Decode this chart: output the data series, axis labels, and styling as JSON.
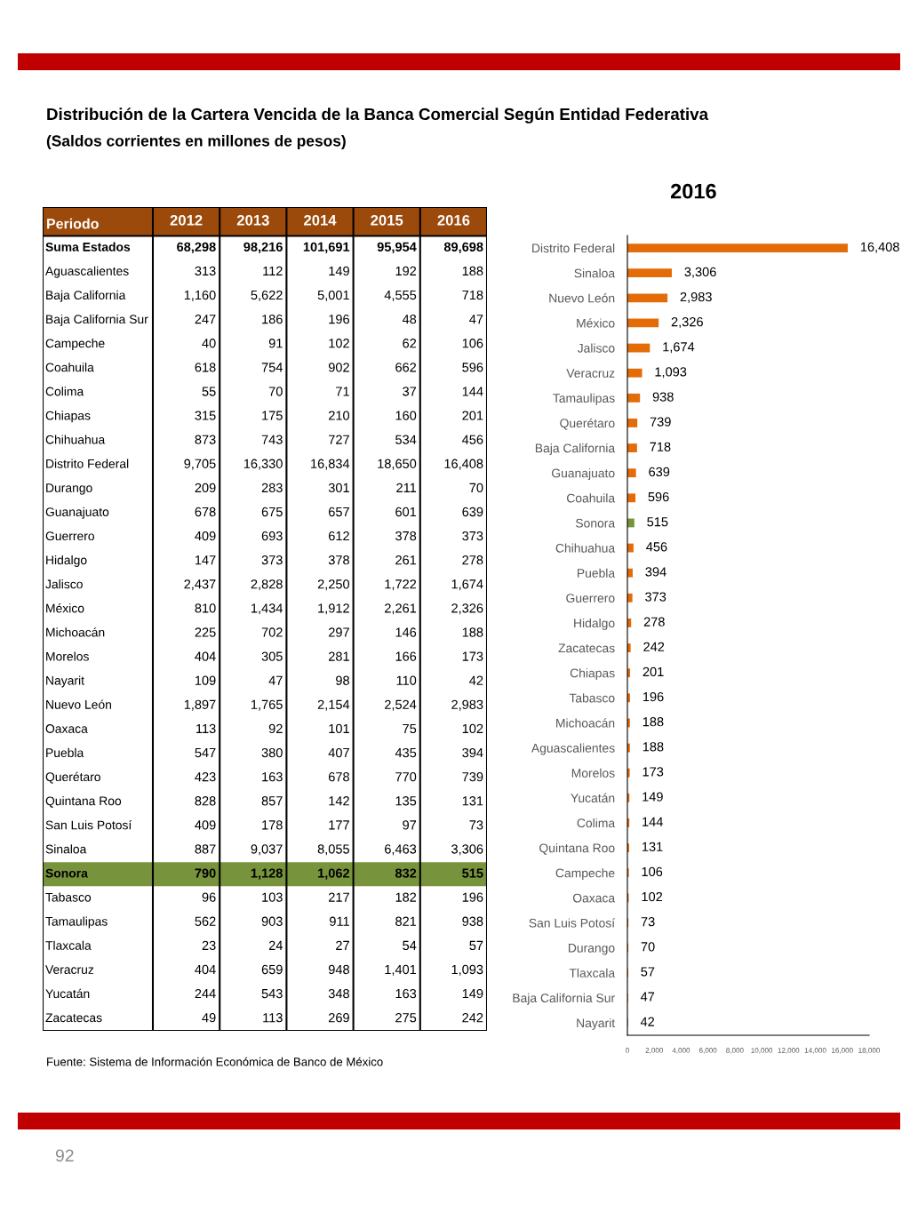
{
  "chart_data": [
    {
      "type": "heatmap",
      "title": "Distribución de la Cartera Vencida de la Banca Comercial Según Entidad Federativa",
      "subtitle": "(Saldos corrientes en millones de pesos)",
      "ylabel": "Periodo",
      "color": "#9c4a0c",
      "categories": [
        "2012",
        "2013",
        "2014",
        "2015",
        "2016"
      ],
      "y_categories": [
        "Suma Estados",
        "Aguascalientes",
        "Baja California",
        "Baja California Sur",
        "Campeche",
        "Coahuila",
        "Colima",
        "Chiapas",
        "Chihuahua",
        "Distrito Federal",
        "Durango",
        "Guanajuato",
        "Guerrero",
        "Hidalgo",
        "Jalisco",
        "México",
        "Michoacán",
        "Morelos",
        "Nayarit",
        "Nuevo León",
        "Oaxaca",
        "Puebla",
        "Querétaro",
        "Quintana Roo",
        "San Luis Potosí",
        "Sinaloa",
        "Sonora",
        "Tabasco",
        "Tamaulipas",
        "Tlaxcala",
        "Veracruz",
        "Yucatán",
        "Zacatecas"
      ],
      "cells": [
        [
          "68,298",
          "98,216",
          "101,691",
          "95,954",
          "89,698"
        ],
        [
          "313",
          "112",
          "149",
          "192",
          "188"
        ],
        [
          "1,160",
          "5,622",
          "5,001",
          "4,555",
          "718"
        ],
        [
          "247",
          "186",
          "196",
          "48",
          "47"
        ],
        [
          "40",
          "91",
          "102",
          "62",
          "106"
        ],
        [
          "618",
          "754",
          "902",
          "662",
          "596"
        ],
        [
          "55",
          "70",
          "71",
          "37",
          "144"
        ],
        [
          "315",
          "175",
          "210",
          "160",
          "201"
        ],
        [
          "873",
          "743",
          "727",
          "534",
          "456"
        ],
        [
          "9,705",
          "16,330",
          "16,834",
          "18,650",
          "16,408"
        ],
        [
          "209",
          "283",
          "301",
          "211",
          "70"
        ],
        [
          "678",
          "675",
          "657",
          "601",
          "639"
        ],
        [
          "409",
          "693",
          "612",
          "378",
          "373"
        ],
        [
          "147",
          "373",
          "378",
          "261",
          "278"
        ],
        [
          "2,437",
          "2,828",
          "2,250",
          "1,722",
          "1,674"
        ],
        [
          "810",
          "1,434",
          "1,912",
          "2,261",
          "2,326"
        ],
        [
          "225",
          "702",
          "297",
          "146",
          "188"
        ],
        [
          "404",
          "305",
          "281",
          "166",
          "173"
        ],
        [
          "109",
          "47",
          "98",
          "110",
          "42"
        ],
        [
          "1,897",
          "1,765",
          "2,154",
          "2,524",
          "2,983"
        ],
        [
          "113",
          "92",
          "101",
          "75",
          "102"
        ],
        [
          "547",
          "380",
          "407",
          "435",
          "394"
        ],
        [
          "423",
          "163",
          "678",
          "770",
          "739"
        ],
        [
          "828",
          "857",
          "142",
          "135",
          "131"
        ],
        [
          "409",
          "178",
          "177",
          "97",
          "73"
        ],
        [
          "887",
          "9,037",
          "8,055",
          "6,463",
          "3,306"
        ],
        [
          "790",
          "1,128",
          "1,062",
          "832",
          "515"
        ],
        [
          "96",
          "103",
          "217",
          "182",
          "196"
        ],
        [
          "562",
          "903",
          "911",
          "821",
          "938"
        ],
        [
          "23",
          "24",
          "27",
          "54",
          "57"
        ],
        [
          "404",
          "659",
          "948",
          "1,401",
          "1,093"
        ],
        [
          "244",
          "543",
          "348",
          "163",
          "149"
        ],
        [
          "49",
          "113",
          "269",
          "275",
          "242"
        ]
      ],
      "colors": [
        "#ffffff",
        "#ffffff",
        "#ffffff",
        "#ffffff",
        "#ffffff",
        "#ffffff",
        "#ffffff",
        "#ffffff",
        "#ffffff",
        "#ffffff",
        "#ffffff",
        "#ffffff",
        "#ffffff",
        "#ffffff",
        "#ffffff",
        "#ffffff",
        "#ffffff",
        "#ffffff",
        "#ffffff",
        "#ffffff",
        "#ffffff",
        "#ffffff",
        "#ffffff",
        "#ffffff",
        "#ffffff",
        "#ffffff",
        "#77933c",
        "#ffffff",
        "#ffffff",
        "#ffffff",
        "#ffffff",
        "#ffffff",
        "#ffffff"
      ],
      "annotations": [
        "Fuente: Sistema de Información Económica de Banco de México",
        "92"
      ]
    },
    {
      "type": "bar",
      "orientation": "horizontal",
      "title": "2016",
      "categories": [
        "Distrito Federal",
        "Sinaloa",
        "Nuevo León",
        "México",
        "Jalisco",
        "Veracruz",
        "Tamaulipas",
        "Querétaro",
        "Baja California",
        "Guanajuato",
        "Coahuila",
        "Sonora",
        "Chihuahua",
        "Puebla",
        "Guerrero",
        "Hidalgo",
        "Zacatecas",
        "Chiapas",
        "Tabasco",
        "Michoacán",
        "Aguascalientes",
        "Morelos",
        "Yucatán",
        "Colima",
        "Quintana Roo",
        "Campeche",
        "Oaxaca",
        "San Luis Potosí",
        "Durango",
        "Tlaxcala",
        "Baja California Sur",
        "Nayarit"
      ],
      "values": [
        16408,
        3306,
        2983,
        2326,
        1674,
        1093,
        938,
        739,
        718,
        639,
        596,
        515,
        456,
        394,
        373,
        278,
        242,
        201,
        196,
        188,
        188,
        173,
        149,
        144,
        131,
        106,
        102,
        73,
        70,
        57,
        47,
        42
      ],
      "colors": [
        "#e36c09",
        "#e36c09",
        "#e36c09",
        "#e36c09",
        "#e36c09",
        "#e36c09",
        "#e36c09",
        "#e36c09",
        "#e36c09",
        "#e36c09",
        "#e36c09",
        "#77933c",
        "#e36c09",
        "#e36c09",
        "#e36c09",
        "#e36c09",
        "#e36c09",
        "#e36c09",
        "#e36c09",
        "#e36c09",
        "#e36c09",
        "#e36c09",
        "#e36c09",
        "#e36c09",
        "#e36c09",
        "#e36c09",
        "#e36c09",
        "#e36c09",
        "#e36c09",
        "#e36c09",
        "#e36c09",
        "#e36c09"
      ],
      "value_labels": [
        "16,408",
        "3,306",
        "2,983",
        "2,326",
        "1,674",
        "1,093",
        "938",
        "739",
        "718",
        "639",
        "596",
        "515",
        "456",
        "394",
        "373",
        "278",
        "242",
        "201",
        "196",
        "188",
        "188",
        "173",
        "149",
        "144",
        "131",
        "106",
        "102",
        "73",
        "70",
        "57",
        "47",
        "42"
      ],
      "xlim": [
        0,
        18000
      ],
      "xticks": [
        0,
        {
          "value": 2000,
          "label": "2,000"
        },
        {
          "value": 4000,
          "label": "4,000"
        },
        {
          "value": 6000,
          "label": "6,000"
        },
        {
          "value": 8000,
          "label": "8,000"
        },
        {
          "value": 10000,
          "label": "10,000"
        },
        {
          "value": 12000,
          "label": "12,000"
        },
        {
          "value": 14000,
          "label": "14,000"
        },
        {
          "value": 16000,
          "label": "16,000"
        },
        {
          "value": 18000,
          "label": "18,000"
        }
      ],
      "grid": false
    }
  ]
}
